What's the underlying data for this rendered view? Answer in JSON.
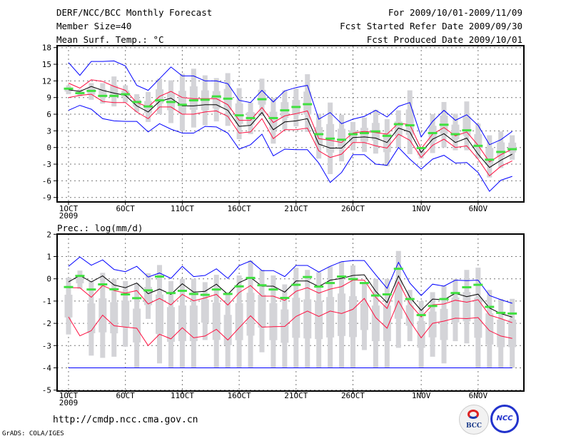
{
  "header": {
    "title": "DERF/NCC/BCC Monthly Forecast",
    "member_size": "Member Size=40",
    "variable": "Mean Surf. Temp.: °C",
    "period": "For 2009/10/01-2009/11/09",
    "started": "Fcst Started Refer Date 2009/09/30",
    "produced": "Fcst Produced Date 2009/10/01"
  },
  "footer": {
    "url": "http://cmdp.ncc.cma.gov.cn",
    "credit": "GrADS: COLA/IGES",
    "logos": [
      "BCC",
      "NCC"
    ]
  },
  "colors": {
    "envelope": "#0000ff",
    "spread": "#ff1040",
    "mean": "#000000",
    "marker": "#40e040",
    "box": "#d4d4d8"
  },
  "chart_data": [
    {
      "type": "line",
      "title": "Mean Surf. Temp.: °C",
      "x_days": 40,
      "xtick_labels": [
        {
          "day": 1,
          "label": "1OCT",
          "sub": "2009"
        },
        {
          "day": 6,
          "label": "6OCT"
        },
        {
          "day": 11,
          "label": "11OCT"
        },
        {
          "day": 16,
          "label": "16OCT"
        },
        {
          "day": 21,
          "label": "21OCT"
        },
        {
          "day": 26,
          "label": "26OCT"
        },
        {
          "day": 32,
          "label": "1NOV"
        },
        {
          "day": 37,
          "label": "6NOV"
        }
      ],
      "ylim": [
        -9,
        18
      ],
      "yticks": [
        18,
        15,
        12,
        9,
        6,
        3,
        0,
        -3,
        -6,
        -9
      ],
      "grid": true,
      "series": [
        {
          "name": "max",
          "color": "#0000ff",
          "values": [
            15.3,
            13,
            15.5,
            15.5,
            15.6,
            14.7,
            11.2,
            10.3,
            12.4,
            14.5,
            12.9,
            12.9,
            12,
            12,
            11.5,
            8.5,
            8.1,
            10.3,
            8.2,
            10.2,
            10.8,
            11.2,
            5.1,
            6.3,
            4.3,
            5.1,
            5.6,
            6.7,
            5.5,
            7.4,
            8.1,
            1.9,
            4.7,
            6.7,
            4.9,
            5.9,
            4,
            0.5,
            1.4,
            2.9
          ]
        },
        {
          "name": "upper",
          "color": "#ff1040",
          "values": [
            11.6,
            10.7,
            12.2,
            11.9,
            11,
            10.3,
            8.1,
            7.3,
            9.2,
            10.1,
            9,
            8.8,
            8.8,
            8.8,
            7.7,
            4.9,
            4.9,
            7.2,
            4.5,
            5.7,
            6.1,
            6.6,
            1.6,
            1.3,
            0.9,
            2.6,
            2.9,
            2.7,
            2.4,
            4.4,
            4.1,
            -0.2,
            2.4,
            3.6,
            2.1,
            2.8,
            0.4,
            -2.6,
            -1.3,
            -0.3
          ]
        },
        {
          "name": "mean",
          "color": "#000000",
          "values": [
            10.4,
            10.1,
            11,
            10.3,
            9.8,
            9.4,
            7.5,
            6.4,
            8.3,
            8.9,
            7.5,
            7.5,
            7.7,
            7.7,
            6.7,
            3.8,
            4,
            6.3,
            3.2,
            4.6,
            4.8,
            5.2,
            0.6,
            -0.1,
            -0.1,
            1.8,
            1.9,
            1.7,
            0.9,
            3.5,
            2.8,
            -0.9,
            1.5,
            2.5,
            0.9,
            1.7,
            -1.2,
            -3.6,
            -2.3,
            -1.2
          ]
        },
        {
          "name": "lower",
          "color": "#ff1040",
          "values": [
            9,
            9.4,
            9.6,
            8.3,
            8.1,
            8.1,
            6.4,
            5.2,
            7.3,
            7.3,
            6,
            6,
            6.4,
            6.6,
            5.6,
            2.6,
            2.8,
            5.2,
            1.6,
            3.2,
            3.2,
            3.5,
            -0.6,
            -1.8,
            -1.2,
            0.9,
            0.9,
            0.3,
            -0.1,
            2.4,
            1.3,
            -1.8,
            0.4,
            1.5,
            0,
            0.3,
            -2.1,
            -5.1,
            -3.4,
            -2.4
          ]
        },
        {
          "name": "min",
          "color": "#0000ff",
          "values": [
            6.7,
            7.6,
            6.9,
            5.2,
            4.8,
            4.7,
            4.7,
            2.8,
            4.3,
            3.3,
            2.6,
            2.6,
            3.8,
            3.7,
            2.6,
            -0.3,
            0.5,
            2.4,
            -1.5,
            -0.3,
            -0.4,
            -0.4,
            -2.8,
            -6.3,
            -4.5,
            -1.3,
            -1.3,
            -3,
            -3.2,
            0,
            -2.1,
            -3.9,
            -2.1,
            -1.4,
            -2.8,
            -2.7,
            -4.5,
            -7.9,
            -5.9,
            -5.2
          ]
        }
      ],
      "markers": {
        "name": "green",
        "values": [
          10.6,
          9.8,
          10.2,
          9.3,
          9.3,
          9.6,
          8.2,
          7.4,
          8.5,
          8.2,
          7.7,
          8.5,
          8.6,
          9.2,
          8.8,
          5.8,
          5.3,
          8.7,
          5.3,
          6.7,
          7.3,
          7.8,
          2.4,
          1.6,
          1.4,
          2.4,
          2.6,
          2.9,
          2.1,
          4.2,
          4,
          -0.1,
          2.6,
          4.1,
          2.4,
          3.1,
          0.3,
          -2.2,
          -0.8,
          -0.3
        ]
      },
      "boxes": {
        "low": [
          9.6,
          9.2,
          8.6,
          7.9,
          7.4,
          8.1,
          6.4,
          4.6,
          6,
          4.4,
          3,
          3.6,
          4,
          4.7,
          3.9,
          1.5,
          2.4,
          5.7,
          0.7,
          3.2,
          3.8,
          2.8,
          -2,
          -4.8,
          -2.5,
          -0.5,
          -0.8,
          -1.1,
          -3.4,
          0,
          -1.2,
          -2,
          -1,
          0,
          -0.5,
          -0.5,
          -2,
          -5.4,
          -3.7,
          -2.2
        ],
        "high": [
          11.2,
          10.5,
          11.6,
          11.6,
          12.8,
          11.2,
          9.6,
          10,
          12.4,
          12.1,
          13.3,
          14.2,
          13,
          12.5,
          13.4,
          10.7,
          8.1,
          12.4,
          8.9,
          10.3,
          10.6,
          13.2,
          6.1,
          8.1,
          5.9,
          4.6,
          5.4,
          6.8,
          5.1,
          6.7,
          10.3,
          0,
          6,
          8.2,
          6.1,
          8.3,
          4.3,
          2.2,
          2.9,
          2.2
        ]
      }
    },
    {
      "type": "line",
      "title": "Prec.: log(mm/d)",
      "x_days": 40,
      "xtick_labels": [
        {
          "day": 1,
          "label": "1OCT",
          "sub": "2009"
        },
        {
          "day": 6,
          "label": "6OCT"
        },
        {
          "day": 11,
          "label": "11OCT"
        },
        {
          "day": 16,
          "label": "16OCT"
        },
        {
          "day": 21,
          "label": "21OCT"
        },
        {
          "day": 26,
          "label": "26OCT"
        },
        {
          "day": 32,
          "label": "1NOV"
        },
        {
          "day": 37,
          "label": "6NOV"
        }
      ],
      "ylim": [
        -5,
        2
      ],
      "yticks": [
        2,
        1,
        0,
        -1,
        -2,
        -3,
        -4,
        -5
      ],
      "grid": true,
      "series": [
        {
          "name": "max",
          "color": "#0000ff",
          "values": [
            0.56,
            0.98,
            0.61,
            0.85,
            0.42,
            0.32,
            0.56,
            0.08,
            0.26,
            0.02,
            0.56,
            0.1,
            0.15,
            0.45,
            0.02,
            0.59,
            0.8,
            0.37,
            0.37,
            0.1,
            0.6,
            0.6,
            0.3,
            0.56,
            0.77,
            0.82,
            0.82,
            0.18,
            -0.43,
            0.74,
            -0.19,
            -0.75,
            -0.24,
            -0.33,
            -0.06,
            -0.08,
            -0.06,
            -0.75,
            -0.94,
            -1.1
          ]
        },
        {
          "name": "upper",
          "color": "#ff1040",
          "values": [
            -0.4,
            -0.4,
            -0.83,
            -0.3,
            -0.53,
            -0.64,
            -0.53,
            -1.13,
            -0.88,
            -1.17,
            -0.7,
            -0.99,
            -0.86,
            -0.7,
            -1.18,
            -0.62,
            -0.3,
            -0.78,
            -0.78,
            -0.97,
            -0.56,
            -0.4,
            -0.64,
            -0.46,
            -0.35,
            -0.06,
            -0.06,
            -0.83,
            -1.33,
            -0.14,
            -1.13,
            -1.71,
            -1.17,
            -1.13,
            -0.96,
            -1.05,
            -0.94,
            -1.63,
            -1.79,
            -1.97
          ]
        },
        {
          "name": "mean",
          "color": "#000000",
          "values": [
            -0.14,
            0.15,
            -0.14,
            0.13,
            -0.28,
            -0.4,
            -0.19,
            -0.67,
            -0.46,
            -0.7,
            -0.22,
            -0.6,
            -0.56,
            -0.24,
            -0.7,
            -0.17,
            0.06,
            -0.33,
            -0.33,
            -0.6,
            -0.1,
            -0.1,
            -0.35,
            -0.06,
            0.02,
            0.15,
            0.18,
            -0.56,
            -1.07,
            0.13,
            -0.83,
            -1.42,
            -0.91,
            -0.94,
            -0.65,
            -0.8,
            -0.69,
            -1.31,
            -1.56,
            -1.72
          ]
        },
        {
          "name": "lower",
          "color": "#ff1040",
          "values": [
            -1.71,
            -2.56,
            -2.33,
            -1.63,
            -2.11,
            -2.17,
            -2.22,
            -3,
            -2.49,
            -2.7,
            -2.2,
            -2.65,
            -2.57,
            -2.27,
            -2.75,
            -2.2,
            -1.66,
            -2.17,
            -2.15,
            -2.14,
            -1.69,
            -1.45,
            -1.69,
            -1.45,
            -1.56,
            -1.37,
            -0.88,
            -1.74,
            -2.22,
            -0.99,
            -1.9,
            -2.65,
            -2,
            -1.9,
            -1.77,
            -1.79,
            -1.74,
            -2.33,
            -2.57,
            -2.68
          ]
        },
        {
          "name": "min",
          "color": "#0000ff",
          "values": [
            -4,
            -4,
            -4,
            -4,
            -4,
            -4,
            -4,
            -4,
            -4,
            -4,
            -4,
            -4,
            -4,
            -4,
            -4,
            -4,
            -4,
            -4,
            -4,
            -4,
            -4,
            -4,
            -4,
            -4,
            -4,
            -4,
            -4,
            -4,
            -4,
            -4,
            -4,
            -4,
            -4,
            -4,
            -4,
            -4,
            -4,
            -4,
            -4,
            -4
          ]
        }
      ],
      "markers": {
        "name": "green",
        "values": [
          -0.37,
          0.13,
          -0.48,
          -0.25,
          -0.47,
          -0.7,
          -0.87,
          -0.52,
          0.1,
          -0.64,
          -0.54,
          -0.68,
          -0.72,
          -0.48,
          -0.68,
          -0.34,
          0.04,
          -0.29,
          -0.48,
          -0.86,
          -0.27,
          0.08,
          -0.35,
          -0.19,
          0.1,
          -0.01,
          -0.19,
          -0.75,
          -0.7,
          0.45,
          -0.91,
          -1.63,
          -1.22,
          -0.91,
          -0.64,
          -0.38,
          -0.27,
          -1.26,
          -1.53,
          -1.56
        ]
      },
      "boxes": {
        "low": [
          -2.5,
          -0.45,
          -3.45,
          -3.55,
          -3.5,
          -3.05,
          -4,
          -1.8,
          -3.8,
          -4,
          -4,
          -4,
          -2.75,
          -4,
          -4,
          -4,
          -4,
          -3.3,
          -4,
          -4,
          -4,
          -4,
          -4,
          -4,
          -4,
          -4,
          -3.2,
          -4,
          -4,
          -3.1,
          -2.8,
          -4,
          -3.5,
          -3.8,
          -2.8,
          -2.9,
          -4,
          -4,
          -4,
          -4
        ],
        "high": [
          0.05,
          0.37,
          -0.1,
          0.27,
          0,
          -0.1,
          -0.2,
          0.25,
          0.62,
          -0.1,
          0,
          0,
          -0.15,
          0.18,
          -0.6,
          0.15,
          0.82,
          0.4,
          0.15,
          -0.25,
          0.5,
          0.4,
          0.3,
          0.55,
          0.77,
          0.6,
          -0.2,
          0,
          0,
          1.25,
          -0.5,
          -1,
          -0.6,
          -0.3,
          0,
          0.4,
          0.5,
          -0.5,
          -0.9,
          -0.9
        ]
      }
    }
  ]
}
